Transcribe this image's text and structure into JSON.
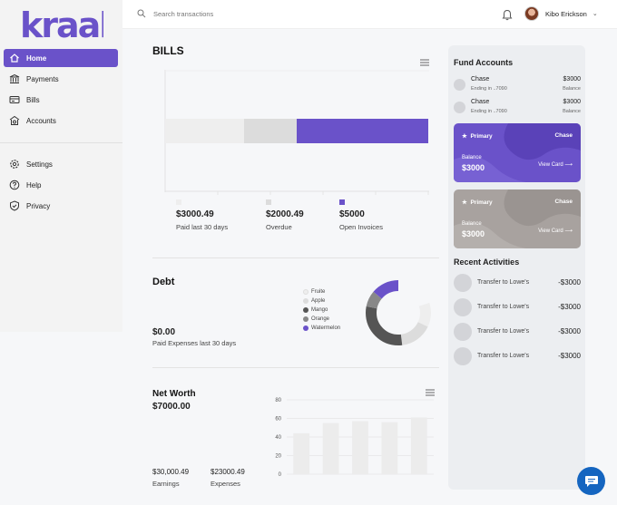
{
  "brand": {
    "logo_text": "kraal",
    "accent": "#6a52c9"
  },
  "sidebar": {
    "items": [
      {
        "label": "Home",
        "icon": "home-icon",
        "active": true
      },
      {
        "label": "Payments",
        "icon": "bank-icon"
      },
      {
        "label": "Bills",
        "icon": "bills-icon"
      },
      {
        "label": "Accounts",
        "icon": "accounts-icon"
      },
      {
        "label": "Settings",
        "icon": "gear-icon"
      },
      {
        "label": "Help",
        "icon": "help-icon"
      },
      {
        "label": "Privacy",
        "icon": "shield-icon"
      }
    ]
  },
  "topbar": {
    "search_placeholder": "Search transactions",
    "user_name": "Kibo Erickson"
  },
  "bills": {
    "title": "BILLS",
    "stats": [
      {
        "amount": "$3000.49",
        "label": "Paid last 30 days",
        "color": "#eeeeee"
      },
      {
        "amount": "$2000.49",
        "label": "Overdue",
        "color": "#dddddd"
      },
      {
        "amount": "$5000",
        "label": "Open Invoices",
        "color": "#6a52c9"
      }
    ]
  },
  "debt": {
    "title": "Debt",
    "amount": "$0.00",
    "caption": "Paid Expenses last 30 days",
    "legend": [
      {
        "label": "Fruite",
        "color": "#eeeeee"
      },
      {
        "label": "Apple",
        "color": "#dcdcdc"
      },
      {
        "label": "Mango",
        "color": "#555555"
      },
      {
        "label": "Orange",
        "color": "#888888"
      },
      {
        "label": "Watermelon",
        "color": "#6a52c9"
      }
    ]
  },
  "networth": {
    "title": "Net Worth",
    "amount": "$7000.00",
    "earnings_amount": "$30,000.49",
    "earnings_label": "Earnings",
    "expenses_amount": "$23000.49",
    "expenses_label": "Expenses"
  },
  "chart_data": {
    "type": "bar",
    "title": "",
    "xlabel": "",
    "ylabel": "",
    "ylim": [
      0,
      80
    ],
    "yticks": [
      "80",
      "60",
      "40",
      "20",
      "0"
    ],
    "values": [
      44,
      55,
      57,
      56,
      61
    ]
  },
  "fund_accounts": {
    "title": "Fund Accounts",
    "items": [
      {
        "name": "Chase",
        "sub": "Ending in ..7090",
        "amount": "$3000",
        "bal_label": "Balance"
      },
      {
        "name": "Chase",
        "sub": "Ending in ..7090",
        "amount": "$3000",
        "bal_label": "Balance"
      }
    ]
  },
  "cards": [
    {
      "tag": "Primary",
      "bank": "Chase",
      "bal_label": "Balance",
      "balance": "$3000",
      "view": "View Card ⟶",
      "color": "#6a52c9"
    },
    {
      "tag": "Primary",
      "bank": "Chase",
      "bal_label": "Balance",
      "balance": "$3000",
      "view": "View Card ⟶",
      "color": "#a8a29f"
    }
  ],
  "recent": {
    "title": "Recent Activities",
    "items": [
      {
        "text": "Transfer to Lowe's",
        "amount": "-$3000"
      },
      {
        "text": "Transfer to Lowe's",
        "amount": "-$3000"
      },
      {
        "text": "Transfer to Lowe's",
        "amount": "-$3000"
      },
      {
        "text": "Transfer to Lowe's",
        "amount": "-$3000"
      }
    ]
  }
}
